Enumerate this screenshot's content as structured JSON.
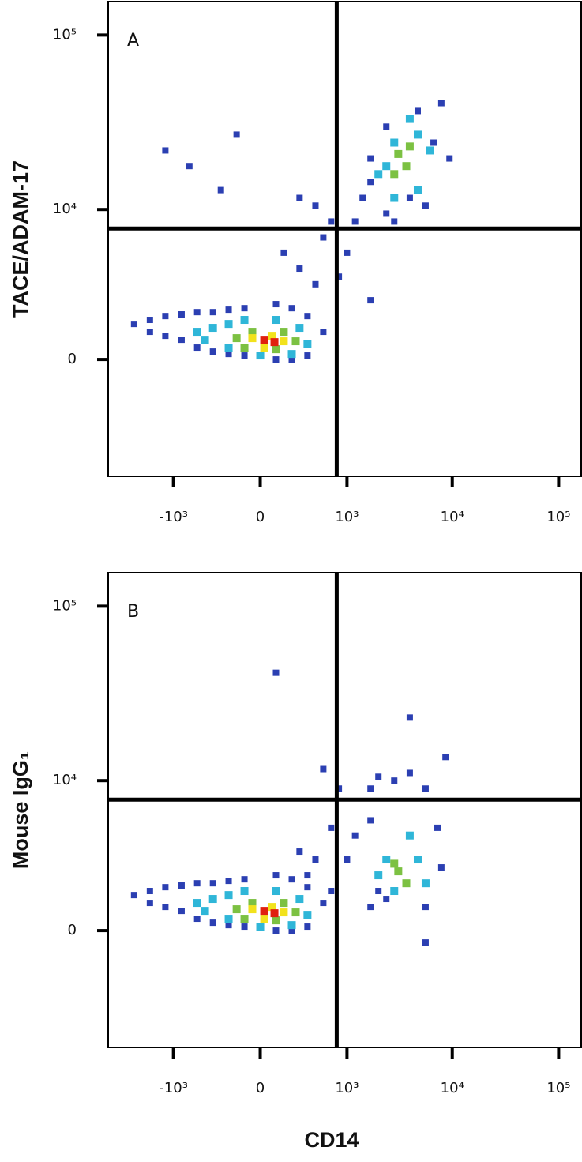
{
  "chart_data": [
    {
      "type": "scatter",
      "panel_label": "A",
      "ylabel": "TACE/ADAM-17",
      "xscale": "biexponential",
      "yscale": "biexponential",
      "xlim": [
        -4200,
        163000
      ],
      "ylim": [
        -6300,
        155000
      ],
      "xticks": [
        {
          "value": -1000,
          "label": "-10³"
        },
        0,
        {
          "value": 1000,
          "label": "10³"
        },
        {
          "value": 10000,
          "label": "10⁴"
        },
        {
          "value": 100000,
          "label": "10⁵"
        }
      ],
      "yticks": [
        0,
        {
          "value": 10000,
          "label": "10⁴"
        },
        {
          "value": 100000,
          "label": "10⁵"
        }
      ],
      "quadrant": {
        "x": 790,
        "y": 7700
      },
      "series": [
        {
          "color": "#2b3fb2",
          "x": [
            -2390,
            -1690,
            -1690,
            -1200,
            -1200,
            -830,
            -830,
            -573,
            -573,
            -379,
            -379,
            -231,
            -231,
            -109,
            -109,
            109,
            231,
            379,
            573,
            379,
            231,
            109,
            470,
            300,
            167,
            573,
            692,
            470,
            300,
            1000,
            1200,
            830,
            1690,
            1420,
            1690,
            2390,
            1690,
            2390,
            4730,
            7890,
            6670,
            9420,
            5610,
            2840,
            3980,
            -1200,
            -692,
            -167,
            -300
          ],
          "y": [
            1380,
            1550,
            1060,
            1716,
            902,
            1790,
            748,
            1890,
            447,
            1890,
            296,
            2000,
            206,
            2070,
            149,
            2260,
            2070,
            1716,
            1060,
            149,
            0,
            0,
            3300,
            4270,
            5440,
            6790,
            8480,
            10540,
            11700,
            5440,
            8480,
            3750,
            2450,
            11700,
            14500,
            9450,
            19800,
            30100,
            37000,
            41000,
            24400,
            19800,
            10540,
            8480,
            11700,
            22000,
            17900,
            27100,
            13000
          ]
        },
        {
          "color": "#2fb6d8",
          "x": [
            -573,
            -379,
            -231,
            -109,
            109,
            300,
            379,
            231,
            0,
            -231,
            -470,
            2010,
            2840,
            4730,
            6130,
            4730,
            2840,
            2390,
            3980
          ],
          "y": [
            1060,
            1220,
            1380,
            1550,
            1550,
            1220,
            596,
            206,
            149,
            447,
            748,
            16100,
            24400,
            27100,
            22000,
            13000,
            11700,
            17900,
            33300
          ]
        },
        {
          "color": "#7cc142",
          "x": [
            -167,
            -54,
            167,
            265,
            109,
            -109,
            3100,
            3690,
            2840,
            3980
          ],
          "y": [
            810,
            1060,
            1060,
            688,
            385,
            447,
            21000,
            17900,
            16100,
            23200
          ]
        },
        {
          "color": "#f2e21c",
          "x": [
            -54,
            81,
            167,
            27
          ],
          "y": [
            810,
            902,
            688,
            447
          ]
        },
        {
          "color": "#e0200f",
          "x": [
            27,
            98
          ],
          "y": [
            748,
            656
          ]
        }
      ]
    },
    {
      "type": "scatter",
      "panel_label": "B",
      "ylabel": "Mouse IgG₁",
      "xlabel": "CD14",
      "xscale": "biexponential",
      "yscale": "biexponential",
      "xlim": [
        -4200,
        163000
      ],
      "ylim": [
        -6300,
        155000
      ],
      "xticks": [
        {
          "value": -1000,
          "label": "-10³"
        },
        0,
        {
          "value": 1000,
          "label": "10³"
        },
        {
          "value": 10000,
          "label": "10⁴"
        },
        {
          "value": 100000,
          "label": "10⁵"
        }
      ],
      "yticks": [
        0,
        {
          "value": 10000,
          "label": "10⁴"
        },
        {
          "value": 100000,
          "label": "10⁵"
        }
      ],
      "quadrant": {
        "x": 790,
        "y": 7700
      },
      "series": [
        {
          "color": "#2b3fb2",
          "x": [
            -2390,
            -1690,
            -1690,
            -1200,
            -1200,
            -830,
            -830,
            -573,
            -573,
            -379,
            -379,
            -231,
            -231,
            -109,
            -109,
            109,
            231,
            379,
            573,
            379,
            231,
            109,
            1690,
            1200,
            1000,
            692,
            470,
            379,
            2010,
            1690,
            2390,
            5610,
            7890,
            7260,
            5610,
            3980,
            2840,
            2010,
            1690,
            830,
            8640,
            3980,
            109,
            573,
            692,
            300,
            5610
          ],
          "y": [
            1380,
            1550,
            1060,
            1716,
            902,
            1790,
            748,
            1890,
            447,
            1890,
            296,
            2000,
            206,
            2070,
            149,
            2260,
            2070,
            1716,
            1060,
            149,
            0,
            0,
            5730,
            4560,
            3070,
            5130,
            3070,
            2260,
            1550,
            902,
            1220,
            902,
            2650,
            5130,
            8970,
            11100,
            10000,
            10540,
            8970,
            8970,
            13750,
            23200,
            41800,
            11700,
            1550,
            3520,
            -447
          ]
        },
        {
          "color": "#2fb6d8",
          "x": [
            -573,
            -379,
            -231,
            -109,
            109,
            300,
            379,
            231,
            0,
            -231,
            -470,
            2390,
            4730,
            2840,
            3980,
            2010,
            5610
          ],
          "y": [
            1060,
            1220,
            1380,
            1550,
            1550,
            1220,
            596,
            206,
            149,
            447,
            748,
            3070,
            3070,
            1550,
            4560,
            2260,
            1890
          ]
        },
        {
          "color": "#7cc142",
          "x": [
            -167,
            -54,
            167,
            265,
            109,
            -109,
            3100,
            3690,
            2840
          ],
          "y": [
            810,
            1060,
            1060,
            688,
            385,
            447,
            2450,
            1890,
            2840
          ]
        },
        {
          "color": "#f2e21c",
          "x": [
            -54,
            81,
            167,
            27
          ],
          "y": [
            810,
            902,
            688,
            447
          ]
        },
        {
          "color": "#e0200f",
          "x": [
            27,
            98
          ],
          "y": [
            748,
            656
          ]
        }
      ]
    }
  ]
}
